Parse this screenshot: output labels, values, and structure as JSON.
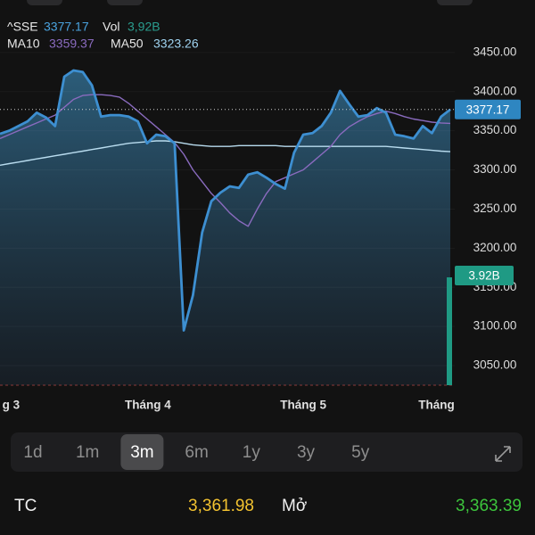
{
  "header": {
    "symbol": "^SSE",
    "price": "3377.17",
    "vol_label": "Vol",
    "vol": "3,92B"
  },
  "chart_data": {
    "type": "line",
    "series": [
      {
        "name": "Price",
        "color": "#3d8fd1",
        "values": [
          3346,
          3350,
          3356,
          3362,
          3373,
          3367,
          3356,
          3419,
          3427,
          3425,
          3408,
          3368,
          3370,
          3370,
          3368,
          3362,
          3334,
          3345,
          3343,
          3334,
          3095,
          3140,
          3220,
          3260,
          3271,
          3279,
          3277,
          3294,
          3297,
          3290,
          3282,
          3276,
          3322,
          3345,
          3347,
          3356,
          3373,
          3401,
          3384,
          3368,
          3370,
          3379,
          3373,
          3345,
          3343,
          3340,
          3356,
          3347,
          3368,
          3377.17
        ]
      },
      {
        "name": "MA10",
        "color": "#8a6bbf",
        "values": [
          3340,
          3345,
          3350,
          3355,
          3360,
          3365,
          3370,
          3380,
          3390,
          3395,
          3396,
          3396,
          3395,
          3393,
          3385,
          3375,
          3365,
          3355,
          3345,
          3335,
          3320,
          3300,
          3285,
          3270,
          3258,
          3245,
          3235,
          3228,
          3250,
          3270,
          3285,
          3290,
          3295,
          3300,
          3310,
          3320,
          3330,
          3345,
          3355,
          3362,
          3368,
          3372,
          3375,
          3372,
          3368,
          3365,
          3363,
          3361,
          3360,
          3359.37
        ]
      },
      {
        "name": "MA50",
        "color": "#b9dcef",
        "values": [
          3306,
          3308,
          3310,
          3312,
          3314,
          3316,
          3318,
          3320,
          3322,
          3324,
          3326,
          3328,
          3330,
          3332,
          3334,
          3335,
          3336,
          3337,
          3337,
          3336,
          3334,
          3332,
          3331,
          3330,
          3330,
          3330,
          3331,
          3331,
          3331,
          3331,
          3331,
          3330,
          3330,
          3330,
          3330,
          3330,
          3330,
          3330,
          3330,
          3330,
          3330,
          3330,
          3330,
          3329,
          3328,
          3327,
          3326,
          3325,
          3324,
          3323.26
        ]
      }
    ],
    "legend_values": [
      "3377.17",
      "3359.37",
      "3323.26"
    ],
    "price_tag": "3377.17",
    "volume": {
      "value": 3.92,
      "label": "3.92B",
      "color": "#1f9a84"
    },
    "y2lim": [
      0,
      14
    ],
    "ylim": [
      3025,
      3517
    ],
    "yticks": [
      {
        "value": 3050,
        "label": "3050.00"
      },
      {
        "value": 3100,
        "label": "3100.00"
      },
      {
        "value": 3150,
        "label": "3150.00"
      },
      {
        "value": 3200,
        "label": "3200.00"
      },
      {
        "value": 3250,
        "label": "3250.00"
      },
      {
        "value": 3300,
        "label": "3300.00"
      },
      {
        "value": 3350,
        "label": "3350.00"
      },
      {
        "value": 3400,
        "label": "3400.00"
      },
      {
        "value": 3450,
        "label": "3450.00"
      }
    ],
    "xticks": [
      {
        "value": 1.2,
        "label": "g 3"
      },
      {
        "value": 16.1,
        "label": "Tháng 4"
      },
      {
        "value": 33,
        "label": "Tháng 5"
      },
      {
        "value": 47.5,
        "label": "Tháng"
      }
    ]
  },
  "ranges": {
    "items": [
      "1d",
      "1m",
      "3m",
      "6m",
      "1y",
      "3y",
      "5y"
    ],
    "selected": 2
  },
  "stats": [
    {
      "label": "TC",
      "value": "3,361.98",
      "color": "#f2c230"
    },
    {
      "label": "Mở",
      "value": "3,363.39",
      "color": "#3cc43c"
    }
  ]
}
